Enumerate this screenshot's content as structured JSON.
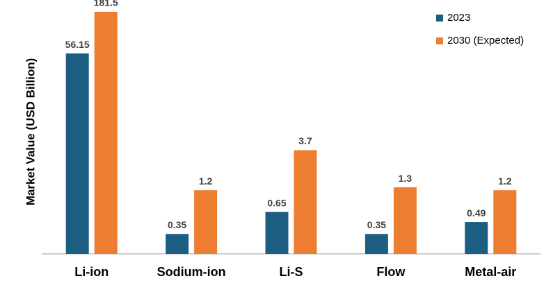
{
  "chart_data": {
    "type": "bar",
    "y_label": "Market Value (USD Billion)",
    "categories": [
      "Li-ion",
      "Sodium-ion",
      "Li-S",
      "Flow",
      "Metal-air"
    ],
    "series": [
      {
        "name": "2023",
        "color": "#1b5e82",
        "values": [
          56.15,
          0.35,
          0.65,
          0.35,
          0.49
        ]
      },
      {
        "name": "2030 (Expected)",
        "color": "#ed7d31",
        "values": [
          181.5,
          1.2,
          3.7,
          1.3,
          1.2
        ]
      }
    ],
    "log_scale": true,
    "ylim": [
      0.2,
      200
    ],
    "legend": "top-right"
  }
}
